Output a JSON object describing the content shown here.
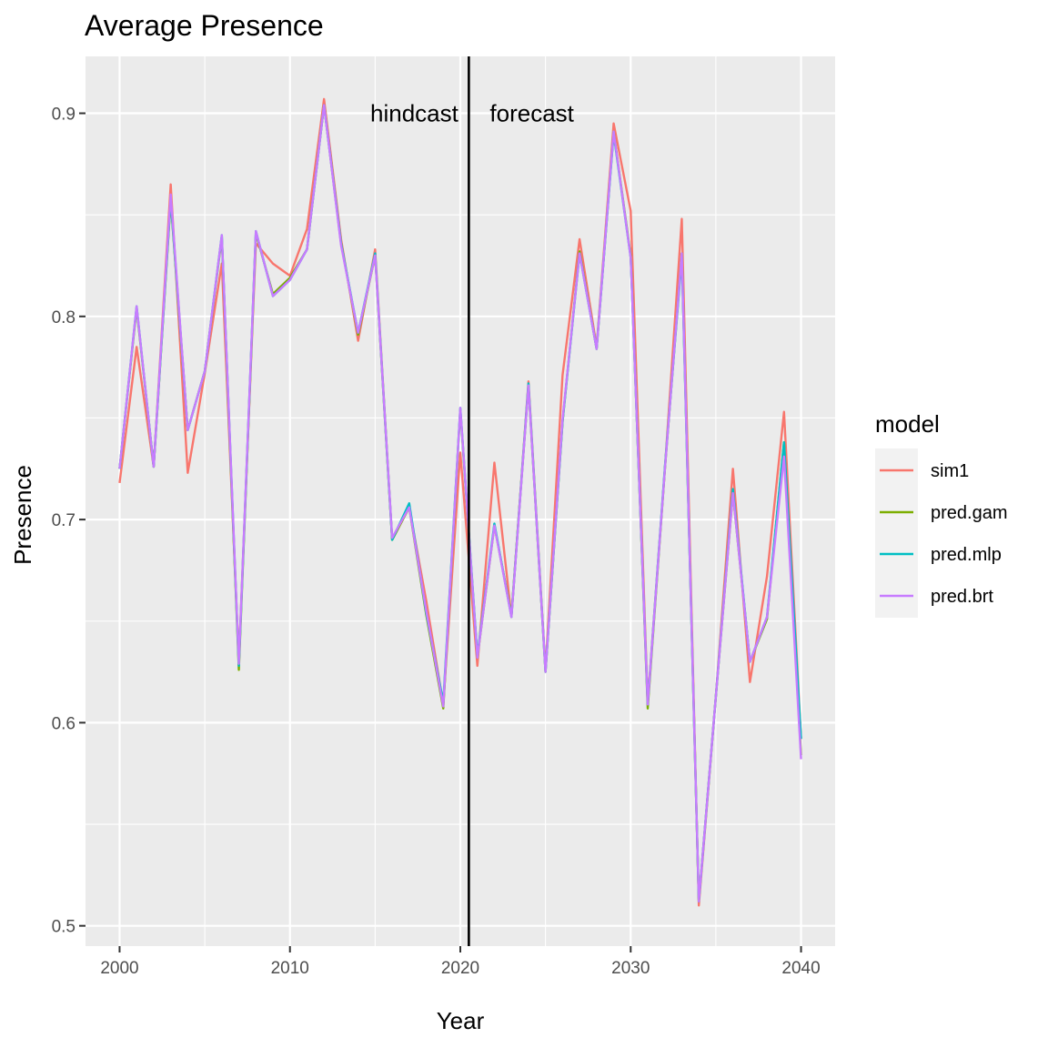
{
  "chart_data": {
    "type": "line",
    "title": "Average Presence",
    "xlabel": "Year",
    "ylabel": "Presence",
    "xlim": [
      1998,
      2042
    ],
    "ylim": [
      0.49,
      0.928
    ],
    "x_ticks": [
      2000,
      2010,
      2020,
      2030,
      2040
    ],
    "y_ticks": [
      0.5,
      0.6,
      0.7,
      0.8,
      0.9
    ],
    "x_tick_labels": [
      "2000",
      "2010",
      "2020",
      "2030",
      "2040"
    ],
    "y_tick_labels": [
      "0.5",
      "0.6",
      "0.7",
      "0.8",
      "0.9"
    ],
    "grid": true,
    "legend": {
      "title": "model",
      "position": "right"
    },
    "vline": {
      "x": 2020.5
    },
    "annotations": [
      {
        "text": "hindcast",
        "x": 2017.3,
        "y": 0.9
      },
      {
        "text": "forecast",
        "x": 2024.2,
        "y": 0.9
      }
    ],
    "x": [
      2000,
      2001,
      2002,
      2003,
      2004,
      2005,
      2006,
      2007,
      2008,
      2009,
      2010,
      2011,
      2012,
      2013,
      2014,
      2015,
      2016,
      2017,
      2018,
      2019,
      2020,
      2021,
      2022,
      2023,
      2024,
      2025,
      2026,
      2027,
      2028,
      2029,
      2030,
      2031,
      2032,
      2033,
      2034,
      2035,
      2036,
      2037,
      2038,
      2039,
      2040
    ],
    "series": [
      {
        "name": "sim1",
        "color": "#F8766D",
        "values": [
          0.718,
          0.785,
          0.726,
          0.865,
          0.723,
          0.772,
          0.826,
          0.631,
          0.836,
          0.826,
          0.82,
          0.843,
          0.907,
          0.838,
          0.788,
          0.833,
          0.69,
          0.706,
          0.66,
          0.609,
          0.733,
          0.628,
          0.728,
          0.652,
          0.768,
          0.626,
          0.771,
          0.838,
          0.785,
          0.895,
          0.852,
          0.61,
          0.724,
          0.848,
          0.51,
          0.613,
          0.725,
          0.62,
          0.672,
          0.753,
          0.592
        ]
      },
      {
        "name": "pred.gam",
        "color": "#7CAE00",
        "values": [
          0.725,
          0.804,
          0.726,
          0.857,
          0.744,
          0.773,
          0.839,
          0.626,
          0.841,
          0.811,
          0.819,
          0.833,
          0.904,
          0.836,
          0.791,
          0.83,
          0.69,
          0.706,
          0.653,
          0.607,
          0.754,
          0.632,
          0.697,
          0.653,
          0.766,
          0.625,
          0.748,
          0.832,
          0.784,
          0.891,
          0.83,
          0.607,
          0.724,
          0.831,
          0.512,
          0.613,
          0.713,
          0.63,
          0.651,
          0.738,
          0.584
        ]
      },
      {
        "name": "pred.mlp",
        "color": "#00BFC4",
        "values": [
          0.725,
          0.805,
          0.726,
          0.858,
          0.744,
          0.773,
          0.84,
          0.628,
          0.842,
          0.81,
          0.818,
          0.833,
          0.904,
          0.836,
          0.792,
          0.831,
          0.69,
          0.708,
          0.654,
          0.61,
          0.755,
          0.633,
          0.698,
          0.652,
          0.767,
          0.625,
          0.748,
          0.831,
          0.784,
          0.89,
          0.829,
          0.609,
          0.725,
          0.829,
          0.512,
          0.613,
          0.715,
          0.63,
          0.652,
          0.738,
          0.592
        ]
      },
      {
        "name": "pred.brt",
        "color": "#C77CFF",
        "values": [
          0.725,
          0.805,
          0.726,
          0.86,
          0.744,
          0.773,
          0.84,
          0.629,
          0.842,
          0.81,
          0.818,
          0.833,
          0.904,
          0.835,
          0.792,
          0.83,
          0.691,
          0.706,
          0.655,
          0.608,
          0.755,
          0.632,
          0.697,
          0.652,
          0.766,
          0.625,
          0.749,
          0.831,
          0.784,
          0.891,
          0.829,
          0.609,
          0.724,
          0.831,
          0.512,
          0.613,
          0.713,
          0.63,
          0.652,
          0.731,
          0.582
        ]
      }
    ]
  }
}
